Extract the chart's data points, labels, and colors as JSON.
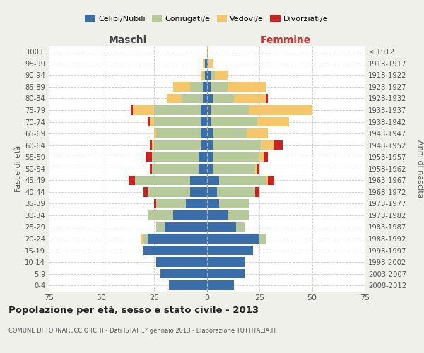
{
  "age_groups": [
    "0-4",
    "5-9",
    "10-14",
    "15-19",
    "20-24",
    "25-29",
    "30-34",
    "35-39",
    "40-44",
    "45-49",
    "50-54",
    "55-59",
    "60-64",
    "65-69",
    "70-74",
    "75-79",
    "80-84",
    "85-89",
    "90-94",
    "95-99",
    "100+"
  ],
  "birth_years": [
    "2008-2012",
    "2003-2007",
    "1998-2002",
    "1993-1997",
    "1988-1992",
    "1983-1987",
    "1978-1982",
    "1973-1977",
    "1968-1972",
    "1963-1967",
    "1958-1962",
    "1953-1957",
    "1948-1952",
    "1943-1947",
    "1938-1942",
    "1933-1937",
    "1928-1932",
    "1923-1927",
    "1918-1922",
    "1913-1917",
    "≤ 1912"
  ],
  "colors": {
    "celibi": "#3a6ea8",
    "coniugati": "#b5c99a",
    "vedovi": "#f5c76a",
    "divorziati": "#cc2222"
  },
  "males": {
    "celibi": [
      18,
      22,
      24,
      30,
      28,
      20,
      16,
      10,
      8,
      8,
      4,
      4,
      3,
      3,
      3,
      3,
      2,
      2,
      1,
      1,
      0
    ],
    "coniugati": [
      0,
      0,
      0,
      0,
      2,
      4,
      12,
      14,
      20,
      26,
      22,
      22,
      22,
      21,
      22,
      22,
      10,
      6,
      1,
      0,
      0
    ],
    "vedovi": [
      0,
      0,
      0,
      0,
      1,
      0,
      0,
      0,
      0,
      0,
      0,
      0,
      1,
      1,
      2,
      10,
      7,
      8,
      1,
      1,
      0
    ],
    "divorziati": [
      0,
      0,
      0,
      0,
      0,
      0,
      0,
      1,
      2,
      3,
      1,
      3,
      1,
      0,
      1,
      1,
      0,
      0,
      0,
      0,
      0
    ]
  },
  "females": {
    "celibi": [
      13,
      18,
      18,
      22,
      25,
      14,
      10,
      6,
      5,
      6,
      3,
      3,
      3,
      3,
      2,
      2,
      3,
      2,
      2,
      1,
      0
    ],
    "coniugati": [
      0,
      0,
      0,
      0,
      3,
      4,
      10,
      14,
      18,
      22,
      20,
      22,
      23,
      16,
      22,
      18,
      10,
      8,
      2,
      0,
      0
    ],
    "vedovi": [
      0,
      0,
      0,
      0,
      0,
      0,
      0,
      0,
      0,
      1,
      1,
      2,
      6,
      10,
      15,
      30,
      15,
      18,
      6,
      2,
      1
    ],
    "divorziati": [
      0,
      0,
      0,
      0,
      0,
      0,
      0,
      0,
      2,
      3,
      1,
      2,
      4,
      0,
      0,
      0,
      1,
      0,
      0,
      0,
      0
    ]
  },
  "title": "Popolazione per età, sesso e stato civile - 2013",
  "subtitle": "COMUNE DI TORNARECCIO (CH) - Dati ISTAT 1° gennaio 2013 - Elaborazione TUTTITALIA.IT",
  "label_maschi": "Maschi",
  "label_femmine": "Femmine",
  "ylabel_left": "Fasce di età",
  "ylabel_right": "Anni di nascita",
  "xlim": 75,
  "bg_color": "#f0f0eb",
  "plot_bg": "#ffffff",
  "grid_color": "#cccccc",
  "legend_labels": [
    "Celibi/Nubili",
    "Coniugati/e",
    "Vedovi/e",
    "Divorziati/e"
  ],
  "maschi_color": "#444444",
  "femmine_color": "#cc3333"
}
